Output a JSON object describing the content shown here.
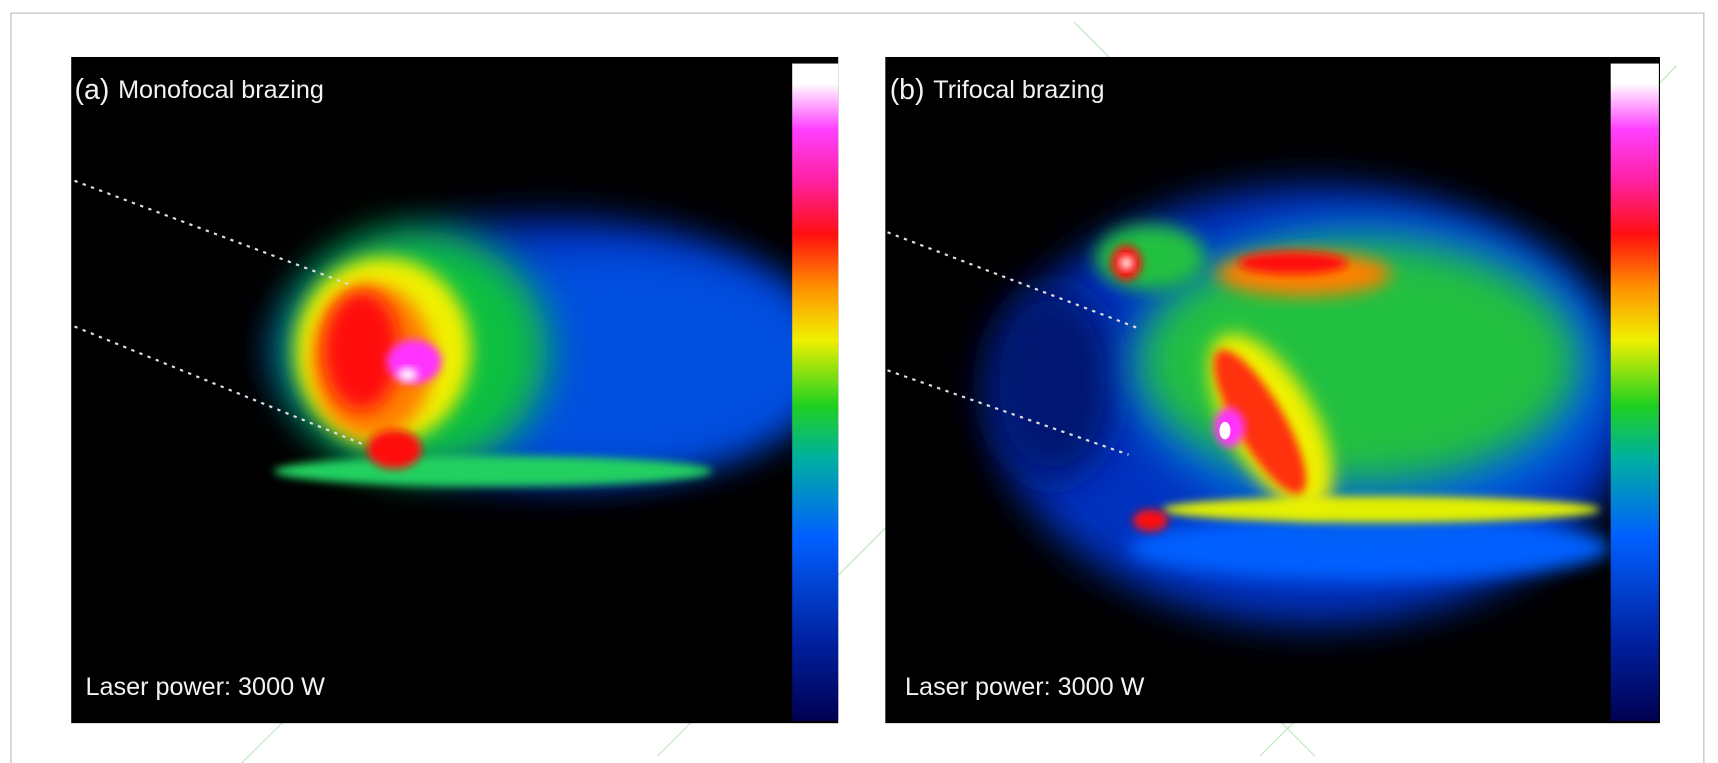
{
  "panels": [
    {
      "label": "(a)",
      "title": "Monofocal brazing",
      "note": "Laser power: 3000 W"
    },
    {
      "label": "(b)",
      "title": "Trifocal brazing",
      "note": "Laser power: 3000 W"
    }
  ]
}
